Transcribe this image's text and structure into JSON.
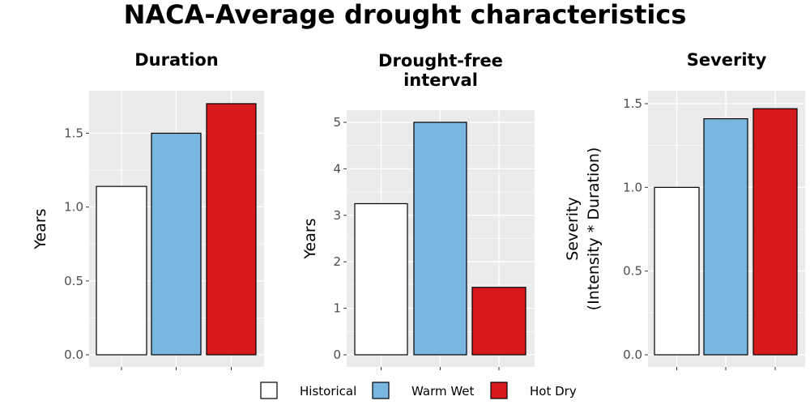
{
  "title": "NACA-Average drought characteristics",
  "legend": [
    {
      "label": "Historical",
      "color": "#ffffff"
    },
    {
      "label": "Warm Wet",
      "color": "#77b7e0"
    },
    {
      "label": "Hot Dry",
      "color": "#d7191c"
    }
  ],
  "chart_data": [
    {
      "type": "bar",
      "title": "Duration",
      "ylabel": "Years",
      "categories": [
        "Historical",
        "Warm Wet",
        "Hot Dry"
      ],
      "values": [
        1.14,
        1.5,
        1.7
      ],
      "ylim": [
        0,
        1.7
      ],
      "ticks": [
        0.0,
        0.5,
        1.0,
        1.5
      ],
      "tick_labels": [
        "0.0",
        "0.5",
        "1.0",
        "1.5"
      ],
      "grid": true
    },
    {
      "type": "bar",
      "title": "Drought-free interval",
      "title_lines": [
        "Drought-free",
        "interval"
      ],
      "ylabel": "Years",
      "categories": [
        "Historical",
        "Warm Wet",
        "Hot Dry"
      ],
      "values": [
        3.25,
        5.0,
        1.45
      ],
      "ylim": [
        0,
        5.0
      ],
      "ticks": [
        0,
        1,
        2,
        3,
        4,
        5
      ],
      "tick_labels": [
        "0",
        "1",
        "2",
        "3",
        "4",
        "5"
      ],
      "grid": true
    },
    {
      "type": "bar",
      "title": "Severity",
      "ylabel": "Severity (Intensity * Duration)",
      "ylabel_lines": [
        "Severity",
        "(Intensity * Duration)"
      ],
      "categories": [
        "Historical",
        "Warm Wet",
        "Hot Dry"
      ],
      "values": [
        1.0,
        1.41,
        1.47
      ],
      "ylim": [
        0,
        1.5
      ],
      "ticks": [
        0.0,
        0.5,
        1.0,
        1.5
      ],
      "tick_labels": [
        "0.0",
        "0.5",
        "1.0",
        "1.5"
      ],
      "grid": true
    }
  ]
}
